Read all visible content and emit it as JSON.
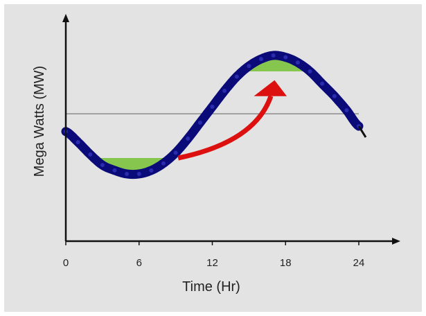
{
  "chart_data": {
    "type": "line",
    "title": "",
    "xlabel": "Time (Hr)",
    "ylabel": "Mega Watts (MW)",
    "x_ticks": [
      "0",
      "6",
      "12",
      "18",
      "24"
    ],
    "xlim": [
      0,
      24
    ],
    "grid": false,
    "series": [
      {
        "x": [
          0,
          1,
          2,
          3,
          4,
          5,
          6,
          7,
          8,
          9,
          10,
          11,
          12,
          13,
          14,
          15,
          16,
          17,
          18,
          19,
          20,
          21,
          22,
          23,
          24
        ],
        "values": [
          0.62,
          0.56,
          0.49,
          0.43,
          0.4,
          0.38,
          0.38,
          0.4,
          0.44,
          0.5,
          0.58,
          0.67,
          0.76,
          0.85,
          0.93,
          0.99,
          1.03,
          1.05,
          1.04,
          1.01,
          0.96,
          0.89,
          0.82,
          0.74,
          0.65
        ]
      }
    ],
    "average_line": 0.72,
    "peak_band": {
      "x_start": 15,
      "x_end": 20,
      "level": 0.96
    },
    "valley_band": {
      "x_start": 2,
      "x_end": 8,
      "level": 0.47
    }
  },
  "colors": {
    "background": "#e3e3e3",
    "curve": "#0a0a78",
    "band_fill": "#86c64f",
    "average_line": "#8c8c8c",
    "arrow": "#dd1010",
    "axis": "#111111"
  }
}
